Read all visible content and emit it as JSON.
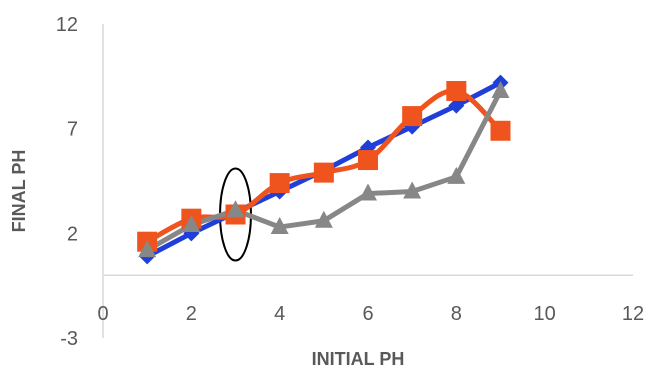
{
  "chart_data": {
    "type": "line",
    "xlabel": "INITIAL PH",
    "ylabel": "FINAL PH",
    "xlim": [
      0,
      12
    ],
    "ylim": [
      -3,
      12
    ],
    "x_ticks": [
      0,
      2,
      4,
      6,
      8,
      10,
      12
    ],
    "y_ticks": [
      -3,
      2,
      7,
      12
    ],
    "grid": false,
    "legend": "none",
    "series": [
      {
        "marker": "diamond",
        "color": "#1f3fd8",
        "x": [
          1,
          2,
          3,
          4,
          5,
          6,
          7,
          8,
          9
        ],
        "y": [
          0.9,
          2.0,
          3.0,
          4.0,
          5.0,
          6.1,
          7.1,
          8.1,
          9.2
        ]
      },
      {
        "marker": "square",
        "color": "#f0541e",
        "x": [
          1,
          2,
          3,
          4,
          5,
          6,
          7,
          8,
          9
        ],
        "y": [
          1.6,
          2.7,
          2.9,
          4.4,
          4.9,
          5.5,
          7.6,
          8.8,
          6.9
        ]
      },
      {
        "marker": "triangle",
        "color": "#878787",
        "x": [
          1,
          2,
          3,
          4,
          5,
          6,
          7,
          8,
          9
        ],
        "y": [
          1.2,
          2.4,
          3.1,
          2.3,
          2.6,
          3.9,
          4.0,
          4.7,
          8.8
        ]
      }
    ],
    "annotations": [
      {
        "shape": "ellipse",
        "color": "#000000",
        "center_x": 3.0,
        "center_y": 2.9,
        "rx": 0.35,
        "ry": 2.2
      }
    ]
  }
}
